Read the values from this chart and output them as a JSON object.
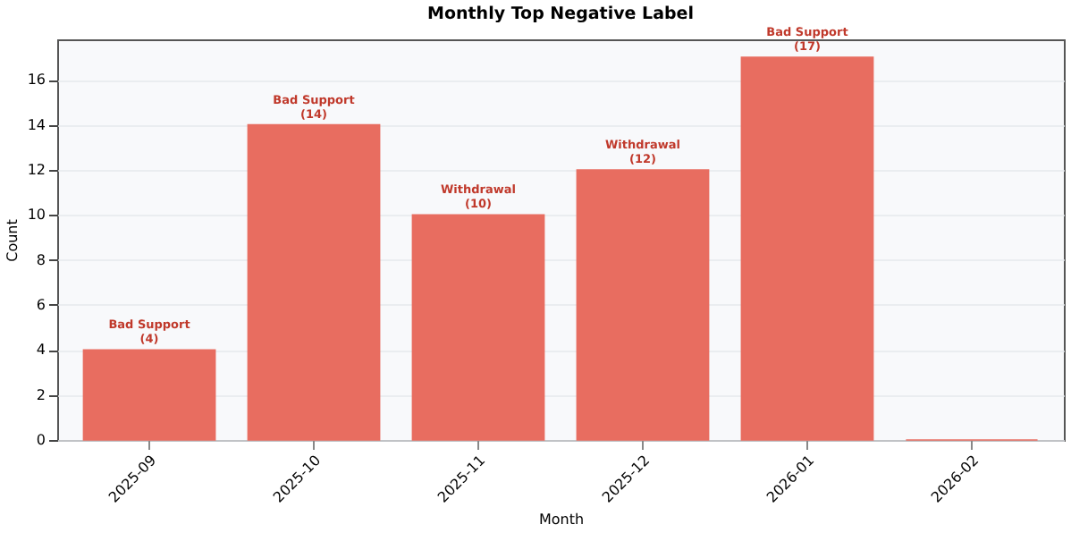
{
  "chart_data": {
    "type": "bar",
    "title": "Monthly Top Negative Label",
    "xlabel": "Month",
    "ylabel": "Count",
    "categories": [
      "2025-09",
      "2025-10",
      "2025-11",
      "2025-12",
      "2026-01",
      "2026-02"
    ],
    "values": [
      4,
      14,
      10,
      12,
      17,
      0
    ],
    "value_labels": [
      "Bad Support\n(4)",
      "Bad Support\n(14)",
      "Withdrawal\n(10)",
      "Withdrawal\n(12)",
      "Bad Support\n(17)",
      null
    ],
    "color": "#e8695c",
    "ylim": [
      0,
      17.8
    ],
    "yticks": [
      0,
      2,
      4,
      6,
      8,
      10,
      12,
      14,
      16
    ],
    "grid": "y"
  }
}
